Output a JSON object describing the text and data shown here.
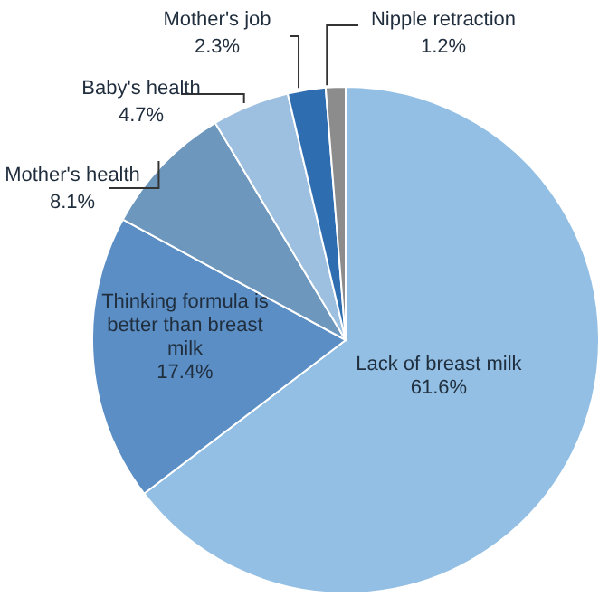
{
  "chart_data": {
    "type": "pie",
    "categories": [
      "Lack of breast milk",
      "Thinking formula is better than breast milk",
      "Mother's health",
      "Baby's health",
      "Mother's job",
      "Nipple retraction"
    ],
    "values": [
      61.6,
      17.4,
      8.1,
      4.7,
      2.3,
      1.2
    ],
    "value_labels": [
      "61.6%",
      "17.4%",
      "8.1%",
      "4.7%",
      "2.3%",
      "1.2%"
    ],
    "colors": [
      "#92bfe3",
      "#5b8ec4",
      "#6d97bd",
      "#9dc0e0",
      "#2e6db0",
      "#8c8c8c"
    ]
  }
}
